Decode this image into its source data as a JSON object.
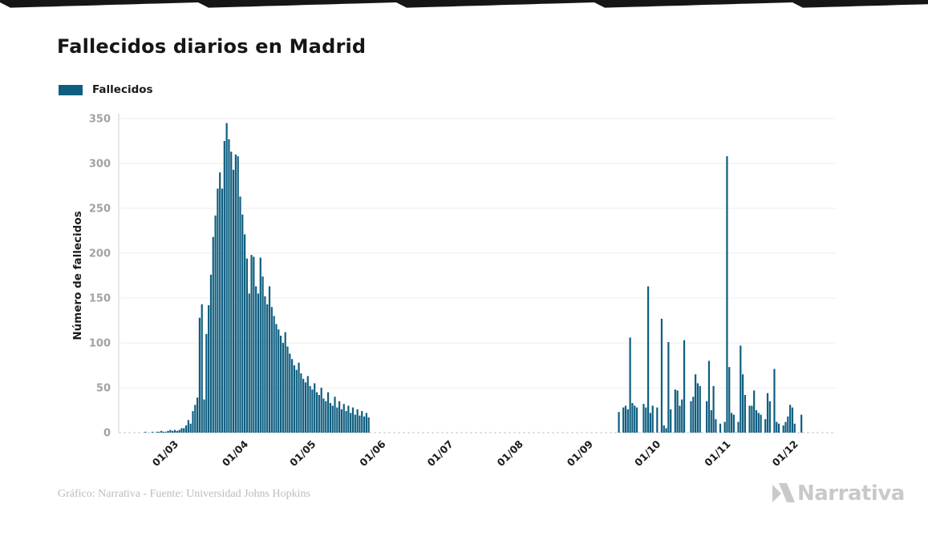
{
  "header": {
    "title": "Fallecidos diarios en Madrid"
  },
  "legend": {
    "label": "Fallecidos",
    "swatch_color": "#0e5e80"
  },
  "chart_data": {
    "type": "bar",
    "title": "Fallecidos diarios en Madrid",
    "series_name": "Fallecidos",
    "xlabel": "",
    "ylabel": "Número de fallecidos",
    "bar_color": "#0e5e80",
    "grid": true,
    "legend_position": "top-left",
    "ylim": [
      0,
      350
    ],
    "y_ticks": [
      0,
      50,
      100,
      150,
      200,
      250,
      300,
      350
    ],
    "x_tick_labels": [
      "01/03",
      "01/04",
      "01/05",
      "01/06",
      "01/07",
      "01/08",
      "01/09",
      "01/10",
      "01/11",
      "01/12"
    ],
    "start_date": "2020-02-15",
    "values": [
      0,
      0,
      1,
      0,
      0,
      1,
      0,
      1,
      1,
      2,
      1,
      1,
      2,
      3,
      2,
      3,
      2,
      3,
      5,
      5,
      8,
      14,
      10,
      24,
      31,
      39,
      128,
      143,
      37,
      110,
      142,
      176,
      218,
      242,
      272,
      290,
      272,
      325,
      345,
      327,
      313,
      293,
      310,
      308,
      263,
      243,
      221,
      194,
      155,
      198,
      196,
      163,
      155,
      195,
      174,
      152,
      143,
      163,
      140,
      130,
      121,
      115,
      108,
      100,
      112,
      96,
      88,
      82,
      75,
      70,
      78,
      66,
      60,
      56,
      63,
      52,
      48,
      55,
      45,
      42,
      50,
      38,
      35,
      45,
      33,
      30,
      40,
      28,
      35,
      26,
      32,
      24,
      30,
      22,
      28,
      20,
      26,
      19,
      24,
      18,
      22,
      17,
      0,
      0,
      0,
      0,
      0,
      0,
      0,
      0,
      0,
      0,
      0,
      0,
      0,
      0,
      0,
      0,
      0,
      0,
      0,
      0,
      0,
      0,
      0,
      0,
      0,
      0,
      0,
      0,
      0,
      0,
      0,
      0,
      0,
      0,
      0,
      0,
      0,
      0,
      0,
      0,
      0,
      0,
      0,
      0,
      0,
      0,
      0,
      0,
      0,
      0,
      0,
      0,
      0,
      0,
      0,
      0,
      0,
      0,
      0,
      0,
      0,
      0,
      0,
      0,
      0,
      0,
      0,
      0,
      0,
      0,
      0,
      0,
      0,
      0,
      0,
      0,
      0,
      0,
      0,
      0,
      0,
      0,
      0,
      0,
      0,
      0,
      0,
      0,
      0,
      0,
      0,
      0,
      0,
      0,
      0,
      0,
      0,
      0,
      0,
      0,
      0,
      0,
      0,
      0,
      0,
      0,
      0,
      0,
      0,
      0,
      23,
      0,
      28,
      30,
      26,
      106,
      33,
      30,
      28,
      0,
      0,
      32,
      28,
      163,
      22,
      30,
      0,
      28,
      0,
      127,
      8,
      5,
      101,
      26,
      0,
      48,
      47,
      30,
      37,
      103,
      0,
      0,
      35,
      40,
      65,
      55,
      52,
      0,
      0,
      35,
      80,
      25,
      52,
      15,
      0,
      10,
      0,
      12,
      308,
      73,
      22,
      20,
      0,
      12,
      97,
      65,
      42,
      0,
      30,
      30,
      47,
      25,
      22,
      20,
      0,
      15,
      44,
      35,
      0,
      71,
      12,
      10,
      0,
      8,
      12,
      18,
      31,
      28,
      10,
      0,
      0,
      20
    ]
  },
  "footer": {
    "credit": "Gráfico: Narrativa - Fuente: Universidad Johns Hopkins",
    "brand": "Narrativa"
  }
}
